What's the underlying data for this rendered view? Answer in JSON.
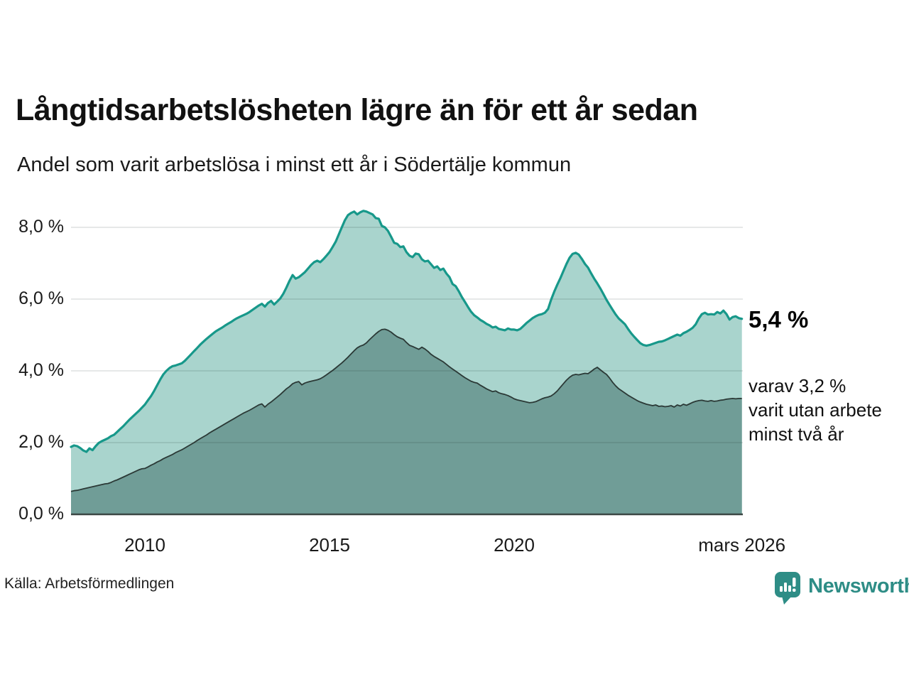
{
  "header": {
    "title": "Långtidsarbetslösheten lägre än för ett år sedan",
    "subtitle": "Andel som varit arbetslösa i minst ett år i Södertälje kommun"
  },
  "annotations": {
    "latest_total": "5,4 %",
    "latest_two_year": "varav 3,2 %\nvarit utan arbete\nminst två år"
  },
  "footer": {
    "source": "Källa: Arbetsförmedlingen",
    "logo_text": "Newsworthy",
    "logo_icon": "newsworthy-bubble-barchart-icon"
  },
  "colors": {
    "one_year_line": "#17988a",
    "one_year_fill": "#a9d4cd",
    "two_year_line": "#2b3936",
    "two_year_fill": "#709d97",
    "gridline": "rgba(30,45,45,0.15)",
    "axis_line": "#3b4744",
    "logo_teal": "#2e8d86",
    "text": "#1a1a1a"
  },
  "chart_data": {
    "type": "area",
    "title": "Långtidsarbetslösheten lägre än för ett år sedan",
    "subtitle": "Andel som varit arbetslösa i minst ett år i Södertälje kommun",
    "unit": "%",
    "x_start": "2008-01",
    "x_end": "2026-03",
    "x_step": "monthly",
    "x_tick_labels": [
      "2010",
      "2015",
      "2020",
      "mars 2026"
    ],
    "x_tick_positions": [
      2010,
      2015,
      2020,
      2026.1667
    ],
    "y_tick_labels": [
      "0,0 %",
      "2,0 %",
      "4,0 %",
      "6,0 %",
      "8,0 %"
    ],
    "y_ticks": [
      0,
      2,
      4,
      6,
      8
    ],
    "ylim": [
      0,
      8.8
    ],
    "grid": true,
    "legend_position": "right-annotations",
    "latest_values": {
      "one_year": 5.4,
      "two_year": 3.2
    },
    "series": [
      {
        "name": "Arbetslösa minst ett år",
        "annotation": "5,4 %",
        "values_by_year": [
          [
            1.88,
            1.92,
            1.9,
            1.85,
            1.78,
            1.74,
            1.84,
            1.79,
            1.9,
            1.99,
            2.04,
            2.08
          ],
          [
            2.12,
            2.18,
            2.22,
            2.3,
            2.38,
            2.46,
            2.55,
            2.64,
            2.72,
            2.8,
            2.88,
            2.97
          ],
          [
            3.06,
            3.18,
            3.3,
            3.44,
            3.6,
            3.76,
            3.9,
            4.0,
            4.08,
            4.13,
            4.15,
            4.18
          ],
          [
            4.21,
            4.28,
            4.37,
            4.46,
            4.55,
            4.64,
            4.73,
            4.81,
            4.89,
            4.96,
            5.03,
            5.1
          ],
          [
            5.15,
            5.2,
            5.26,
            5.31,
            5.36,
            5.42,
            5.47,
            5.51,
            5.55,
            5.59,
            5.64,
            5.7
          ],
          [
            5.76,
            5.82,
            5.87,
            5.79,
            5.89,
            5.95,
            5.85,
            5.93,
            6.02,
            6.15,
            6.32,
            6.51
          ],
          [
            6.67,
            6.57,
            6.61,
            6.68,
            6.75,
            6.85,
            6.95,
            7.03,
            7.07,
            7.03,
            7.11,
            7.21
          ],
          [
            7.31,
            7.45,
            7.6,
            7.8,
            8.0,
            8.2,
            8.34,
            8.4,
            8.44,
            8.36,
            8.42,
            8.46
          ],
          [
            8.44,
            8.4,
            8.36,
            8.26,
            8.24,
            8.04,
            8.0,
            7.9,
            7.74,
            7.57,
            7.54,
            7.45
          ],
          [
            7.47,
            7.31,
            7.21,
            7.17,
            7.27,
            7.25,
            7.11,
            7.05,
            7.07,
            6.97,
            6.87,
            6.91
          ],
          [
            6.81,
            6.85,
            6.71,
            6.61,
            6.42,
            6.36,
            6.22,
            6.06,
            5.92,
            5.78,
            5.65,
            5.55
          ],
          [
            5.49,
            5.42,
            5.37,
            5.31,
            5.27,
            5.21,
            5.23,
            5.17,
            5.15,
            5.13,
            5.18,
            5.15
          ],
          [
            5.15,
            5.13,
            5.17,
            5.25,
            5.33,
            5.4,
            5.47,
            5.52,
            5.56,
            5.58,
            5.62,
            5.72
          ],
          [
            5.98,
            6.2,
            6.4,
            6.58,
            6.78,
            6.98,
            7.15,
            7.26,
            7.29,
            7.24,
            7.12,
            6.98
          ],
          [
            6.88,
            6.72,
            6.57,
            6.44,
            6.3,
            6.14,
            5.98,
            5.84,
            5.7,
            5.57,
            5.46,
            5.38
          ],
          [
            5.3,
            5.17,
            5.05,
            4.95,
            4.86,
            4.77,
            4.72,
            4.7,
            4.72,
            4.75,
            4.78,
            4.81
          ],
          [
            4.82,
            4.85,
            4.89,
            4.93,
            4.97,
            5.01,
            4.98,
            5.05,
            5.09,
            5.14,
            5.2,
            5.3
          ],
          [
            5.46,
            5.58,
            5.62,
            5.57,
            5.58,
            5.57,
            5.64,
            5.6,
            5.68,
            5.58,
            5.43,
            5.5
          ],
          [
            5.52,
            5.47,
            5.45
          ]
        ]
      },
      {
        "name": "Varav utan arbete minst två år",
        "annotation": "varav 3,2 % varit utan arbete minst två år",
        "values_by_year": [
          [
            0.64,
            0.66,
            0.67,
            0.69,
            0.71,
            0.73,
            0.75,
            0.77,
            0.79,
            0.81,
            0.83,
            0.85
          ],
          [
            0.86,
            0.89,
            0.93,
            0.96,
            1.0,
            1.04,
            1.08,
            1.12,
            1.16,
            1.2,
            1.24,
            1.27
          ],
          [
            1.28,
            1.32,
            1.37,
            1.41,
            1.46,
            1.5,
            1.55,
            1.59,
            1.63,
            1.67,
            1.72,
            1.76
          ],
          [
            1.8,
            1.85,
            1.9,
            1.95,
            2.0,
            2.06,
            2.11,
            2.16,
            2.21,
            2.27,
            2.32,
            2.37
          ],
          [
            2.42,
            2.47,
            2.52,
            2.57,
            2.62,
            2.67,
            2.72,
            2.77,
            2.82,
            2.86,
            2.9,
            2.95
          ],
          [
            3.0,
            3.05,
            3.08,
            2.99,
            3.07,
            3.13,
            3.2,
            3.27,
            3.34,
            3.42,
            3.5,
            3.56
          ],
          [
            3.64,
            3.68,
            3.7,
            3.61,
            3.66,
            3.69,
            3.71,
            3.73,
            3.75,
            3.78,
            3.83,
            3.89
          ],
          [
            3.95,
            4.01,
            4.08,
            4.15,
            4.22,
            4.3,
            4.38,
            4.47,
            4.56,
            4.64,
            4.69,
            4.72
          ],
          [
            4.78,
            4.87,
            4.95,
            5.03,
            5.1,
            5.15,
            5.16,
            5.13,
            5.08,
            5.01,
            4.95,
            4.91
          ],
          [
            4.88,
            4.79,
            4.71,
            4.68,
            4.64,
            4.6,
            4.66,
            4.61,
            4.54,
            4.46,
            4.4,
            4.35
          ],
          [
            4.3,
            4.25,
            4.18,
            4.11,
            4.05,
            3.99,
            3.93,
            3.87,
            3.81,
            3.76,
            3.71,
            3.68
          ],
          [
            3.66,
            3.6,
            3.55,
            3.5,
            3.46,
            3.42,
            3.44,
            3.39,
            3.36,
            3.34,
            3.31,
            3.27
          ],
          [
            3.22,
            3.19,
            3.17,
            3.15,
            3.13,
            3.11,
            3.12,
            3.14,
            3.18,
            3.22,
            3.25,
            3.27
          ],
          [
            3.3,
            3.36,
            3.44,
            3.54,
            3.64,
            3.74,
            3.82,
            3.88,
            3.9,
            3.89,
            3.91,
            3.93
          ],
          [
            3.92,
            3.98,
            4.05,
            4.1,
            4.03,
            3.96,
            3.9,
            3.8,
            3.68,
            3.58,
            3.5,
            3.44
          ],
          [
            3.38,
            3.32,
            3.27,
            3.22,
            3.17,
            3.13,
            3.1,
            3.07,
            3.05,
            3.03,
            3.05,
            3.01
          ],
          [
            3.02,
            3.0,
            3.01,
            3.03,
            2.99,
            3.05,
            3.02,
            3.07,
            3.04,
            3.08,
            3.12,
            3.15
          ],
          [
            3.17,
            3.18,
            3.16,
            3.15,
            3.17,
            3.15,
            3.16,
            3.18,
            3.19,
            3.21,
            3.22,
            3.23
          ],
          [
            3.22,
            3.23,
            3.23
          ]
        ]
      }
    ]
  }
}
